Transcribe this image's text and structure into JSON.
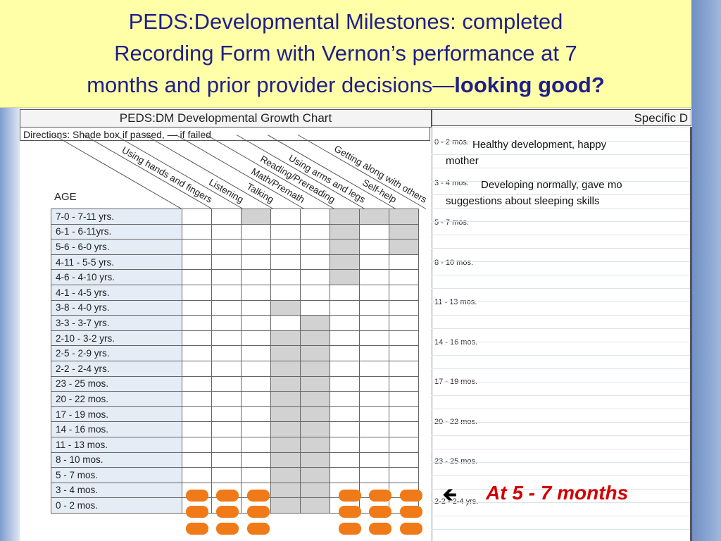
{
  "title": {
    "line1": "PEDS:Developmental Milestones: completed",
    "line2": "Recording Form with Vernon’s performance at 7",
    "line3_normal": "months and prior provider decisions—",
    "line3_bold": "looking good?"
  },
  "chart": {
    "header": "PEDS:DM Developmental Growth Chart",
    "directions": "Directions: Shade box if passed,  — if failed",
    "age_label": "AGE",
    "domains": [
      "Using hands and fingers",
      "Listening",
      "Talking",
      "Math/Premath",
      "Reading/Prereading",
      "Using arms and legs",
      "Self-help",
      "Getting along with others"
    ],
    "rows": [
      {
        "age": "7-0 - 7-11 yrs.",
        "shaded": [
          0,
          0,
          1,
          0,
          0,
          1,
          1,
          1
        ]
      },
      {
        "age": "6-1 - 6-11yrs.",
        "shaded": [
          0,
          0,
          0,
          0,
          0,
          1,
          0,
          1
        ]
      },
      {
        "age": "5-6 - 6-0 yrs.",
        "shaded": [
          0,
          0,
          0,
          0,
          0,
          1,
          0,
          1
        ]
      },
      {
        "age": "4-11 - 5-5 yrs.",
        "shaded": [
          0,
          0,
          0,
          0,
          0,
          1,
          0,
          0
        ]
      },
      {
        "age": "4-6 - 4-10 yrs.",
        "shaded": [
          0,
          0,
          0,
          0,
          0,
          1,
          0,
          0
        ]
      },
      {
        "age": "4-1 - 4-5 yrs.",
        "shaded": [
          0,
          0,
          0,
          0,
          0,
          0,
          0,
          0
        ]
      },
      {
        "age": "3-8 - 4-0 yrs.",
        "shaded": [
          0,
          0,
          0,
          1,
          0,
          0,
          0,
          0
        ]
      },
      {
        "age": "3-3 - 3-7 yrs.",
        "shaded": [
          0,
          0,
          0,
          0,
          1,
          0,
          0,
          0
        ]
      },
      {
        "age": "2-10 - 3-2 yrs.",
        "shaded": [
          0,
          0,
          0,
          1,
          1,
          0,
          0,
          0
        ]
      },
      {
        "age": "2-5 - 2-9 yrs.",
        "shaded": [
          0,
          0,
          0,
          1,
          1,
          0,
          0,
          0
        ]
      },
      {
        "age": "2-2 - 2-4 yrs.",
        "shaded": [
          0,
          0,
          0,
          1,
          1,
          0,
          0,
          0
        ]
      },
      {
        "age": "23 - 25 mos.",
        "shaded": [
          0,
          0,
          0,
          1,
          1,
          0,
          0,
          0
        ]
      },
      {
        "age": "20 - 22 mos.",
        "shaded": [
          0,
          0,
          0,
          1,
          1,
          0,
          0,
          0
        ]
      },
      {
        "age": "17 - 19 mos.",
        "shaded": [
          0,
          0,
          0,
          1,
          1,
          0,
          0,
          0
        ]
      },
      {
        "age": "14 - 16 mos.",
        "shaded": [
          0,
          0,
          0,
          1,
          1,
          0,
          0,
          0
        ]
      },
      {
        "age": "11 - 13 mos.",
        "shaded": [
          0,
          0,
          0,
          1,
          1,
          0,
          0,
          0
        ]
      },
      {
        "age": "8 - 10 mos.",
        "shaded": [
          0,
          0,
          0,
          1,
          1,
          0,
          0,
          0
        ]
      },
      {
        "age": "5 - 7 mos.",
        "shaded": [
          0,
          0,
          0,
          1,
          1,
          0,
          0,
          0
        ]
      },
      {
        "age": "3 - 4 mos.",
        "shaded": [
          0,
          0,
          0,
          1,
          1,
          0,
          0,
          0
        ]
      },
      {
        "age": "0 - 2 mos.",
        "shaded": [
          0,
          0,
          0,
          1,
          1,
          0,
          0,
          0
        ]
      }
    ],
    "orange_marks": {
      "rows": [
        "5 - 7 mos.",
        "3 - 4 mos.",
        "0 - 2 mos."
      ],
      "columns": [
        "Using hands and fingers",
        "Listening",
        "Talking",
        "Using arms and legs",
        "Self-help",
        "Getting along with others"
      ]
    }
  },
  "specific": {
    "header": "Specific D",
    "ages": [
      "0 - 2 mos.",
      "3 - 4 mos.",
      "5 - 7 mos.",
      "8 - 10 mos.",
      "11 - 13 mos.",
      "14 - 16 mos.",
      "17 - 19 mos.",
      "20 - 22 mos.",
      "23 - 25 mos.",
      "2-2 - 2-4 yrs."
    ],
    "notes": [
      {
        "age": "0 - 2 mos.",
        "line1": "Healthy development, happy",
        "line2": "mother"
      },
      {
        "age": "3 - 4 mos.",
        "line1": "Developing normally, gave mo",
        "line2": "suggestions about sleeping skills"
      }
    ]
  },
  "callout": {
    "arrow": "🡸",
    "text": "At 5 - 7 months"
  },
  "colors": {
    "title_bg": "#ffffa8",
    "title_text": "#1f1f8a",
    "shade": "#d2d2d2",
    "orange": "#f07a17",
    "callout": "#d40000",
    "age_cell": "#e4ecf6"
  }
}
